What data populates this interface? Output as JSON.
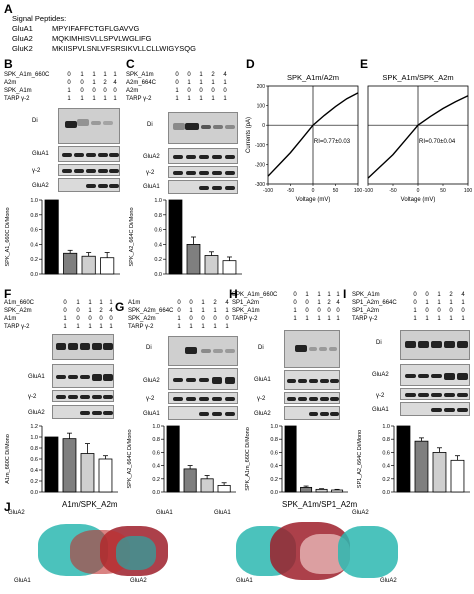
{
  "panels": {
    "A": "A",
    "B": "B",
    "C": "C",
    "D": "D",
    "E": "E",
    "F": "F",
    "G": "G",
    "H": "H",
    "I": "I",
    "J": "J"
  },
  "signal": {
    "title": "Signal Peptides:",
    "rows": [
      {
        "name": "GluA1",
        "seq": "MPYIFAFFCTGFLGAVVG"
      },
      {
        "name": "GluA2",
        "seq": "MQKIMHISVLLSPVLWGLIFG"
      },
      {
        "name": "GluK2",
        "seq": "MKIISPVLSNLVFSRSIKVLLCLLWIGYSQG"
      }
    ]
  },
  "B": {
    "rows": [
      {
        "label": "SPK_A1m_660C",
        "vals": [
          "0",
          "1",
          "1",
          "1",
          "1"
        ]
      },
      {
        "label": "A2m",
        "vals": [
          "0",
          "0",
          "1",
          "2",
          "4"
        ]
      },
      {
        "label": "SPK_A1m",
        "vals": [
          "1",
          "0",
          "0",
          "0",
          "0"
        ]
      },
      {
        "label": "TARP γ-2",
        "vals": [
          "1",
          "1",
          "1",
          "1",
          "1"
        ]
      }
    ],
    "di": "Di",
    "blot2": "GluA1",
    "blot3": "γ-2",
    "blot4": "GluA2",
    "ylabel": "SPK_A1_660C Di/Mono",
    "ticks": [
      "1.0",
      "0.8",
      "0.6",
      "0.4",
      "0.2",
      "0.0"
    ]
  },
  "C": {
    "rows": [
      {
        "label": "SPK_A1m",
        "vals": [
          "0",
          "0",
          "1",
          "2",
          "4"
        ]
      },
      {
        "label": "A2m_664C",
        "vals": [
          "0",
          "1",
          "1",
          "1",
          "1"
        ]
      },
      {
        "label": "A2m",
        "vals": [
          "1",
          "0",
          "0",
          "0",
          "0"
        ]
      },
      {
        "label": "TARP γ-2",
        "vals": [
          "1",
          "1",
          "1",
          "1",
          "1"
        ]
      }
    ],
    "di": "Di",
    "blot2": "GluA2",
    "blot3": "γ-2",
    "blot4": "GluA1",
    "ylabel": "SPK_A2_664C Di/Mono",
    "ticks": [
      "1.0",
      "0.8",
      "0.6",
      "0.4",
      "0.2",
      "0.0"
    ]
  },
  "D": {
    "title": "SPK_A1m/A2m",
    "ylabel": "Currents (pA)",
    "xlabel": "Voltage (mV)",
    "ri": "RI=0.77±0.03",
    "yticks": [
      "200",
      "100",
      "0",
      "-100",
      "-200",
      "-300"
    ],
    "xticks": [
      "-100",
      "-50",
      "0",
      "50",
      "100"
    ]
  },
  "E": {
    "title": "SPK_A1m/SPK_A2m",
    "xlabel": "Voltage (mV)",
    "ri": "RI=0.70±0.04",
    "xticks": [
      "-100",
      "-50",
      "0",
      "50",
      "100"
    ]
  },
  "F": {
    "rows": [
      {
        "label": "A1m_660C",
        "vals": [
          "0",
          "1",
          "1",
          "1",
          "1"
        ]
      },
      {
        "label": "SPK_A2m",
        "vals": [
          "0",
          "0",
          "1",
          "2",
          "4"
        ]
      },
      {
        "label": "A1m",
        "vals": [
          "1",
          "0",
          "0",
          "0",
          "0"
        ]
      },
      {
        "label": "TARP γ-2",
        "vals": [
          "1",
          "1",
          "1",
          "1",
          "1"
        ]
      }
    ],
    "blot2": "GluA1",
    "blot3": "γ-2",
    "blot4": "GluA2",
    "ylabel": "A1m_660C Di/Mono",
    "ticks": [
      "1.2",
      "1.0",
      "0.8",
      "0.6",
      "0.4",
      "0.2",
      "0.0"
    ]
  },
  "G": {
    "rows": [
      {
        "label": "A1m",
        "vals": [
          "0",
          "0",
          "1",
          "2",
          "4"
        ]
      },
      {
        "label": "SPK_A2m_664C",
        "vals": [
          "0",
          "1",
          "1",
          "1",
          "1"
        ]
      },
      {
        "label": "SPK_A2m",
        "vals": [
          "1",
          "0",
          "0",
          "0",
          "0"
        ]
      },
      {
        "label": "TARP γ-2",
        "vals": [
          "1",
          "1",
          "1",
          "1",
          "1"
        ]
      }
    ],
    "di": "Di",
    "blot2": "GluA2",
    "blot3": "γ-2",
    "blot4": "GluA1",
    "ylabel": "SPK_A2_664C Di/Mono",
    "ticks": [
      "1.0",
      "0.8",
      "0.6",
      "0.4",
      "0.2",
      "0.0"
    ]
  },
  "H": {
    "rows": [
      {
        "label": "SPK_A1m_660C",
        "vals": [
          "0",
          "1",
          "1",
          "1",
          "1"
        ]
      },
      {
        "label": "SP1_A2m",
        "vals": [
          "0",
          "0",
          "1",
          "2",
          "4"
        ]
      },
      {
        "label": "SPK_A1m",
        "vals": [
          "1",
          "0",
          "0",
          "0",
          "0"
        ]
      },
      {
        "label": "TARP γ-2",
        "vals": [
          "1",
          "1",
          "1",
          "1",
          "1"
        ]
      }
    ],
    "di": "Di",
    "blot2": "GluA1",
    "blot3": "γ-2",
    "blot4": "GluA2",
    "ylabel": "SPK_A1m_660C Di/Mono",
    "ticks": [
      "1.0",
      "0.8",
      "0.6",
      "0.4",
      "0.2",
      "0.0"
    ]
  },
  "I": {
    "rows": [
      {
        "label": "SPK_A1m",
        "vals": [
          "0",
          "0",
          "1",
          "2",
          "4"
        ]
      },
      {
        "label": "SP1_A2m_664C",
        "vals": [
          "0",
          "1",
          "1",
          "1",
          "1"
        ]
      },
      {
        "label": "SP1_A2m",
        "vals": [
          "1",
          "0",
          "0",
          "0",
          "0"
        ]
      },
      {
        "label": "TARP γ-2",
        "vals": [
          "1",
          "1",
          "1",
          "1",
          "1"
        ]
      }
    ],
    "di": "Di",
    "blot2": "GluA2",
    "blot3": "γ-2",
    "blot4": "GluA1",
    "ylabel": "SP1_A2_664C Di/Mono",
    "ticks": [
      "1.0",
      "0.8",
      "0.6",
      "0.4",
      "0.2",
      "0.0"
    ]
  },
  "J": {
    "left_title": "A1m/SPK_A2m",
    "right_title": "SPK_A1m/SP1_A2m",
    "labels": [
      "GluA2",
      "GluA1",
      "GluA1",
      "GluA2",
      "GluA1",
      "GluA2",
      "GluA1",
      "GluA2"
    ]
  },
  "chart_data": [
    {
      "type": "bar",
      "panel": "B",
      "categories": [
        "1",
        "2",
        "3",
        "4",
        "5"
      ],
      "values": [
        1.0,
        0.28,
        0.24,
        0.22,
        0.0
      ],
      "errors": [
        0,
        0.04,
        0.05,
        0.07,
        0
      ],
      "ylim": [
        0,
        1.0
      ]
    },
    {
      "type": "bar",
      "panel": "C",
      "categories": [
        "1",
        "2",
        "3",
        "4",
        "5"
      ],
      "values": [
        1.0,
        0.4,
        0.25,
        0.18,
        0.0
      ],
      "errors": [
        0,
        0.1,
        0.05,
        0.05,
        0
      ],
      "ylim": [
        0,
        1.0
      ]
    },
    {
      "type": "line",
      "panel": "D",
      "xlabel": "Voltage (mV)",
      "ylabel": "Currents (pA)",
      "x": [
        -100,
        -75,
        -50,
        -25,
        0,
        25,
        50,
        75,
        100
      ],
      "y": [
        -260,
        -200,
        -140,
        -70,
        0,
        50,
        95,
        135,
        165
      ],
      "xlim": [
        -100,
        100
      ],
      "ylim": [
        -300,
        200
      ]
    },
    {
      "type": "line",
      "panel": "E",
      "xlabel": "Voltage (mV)",
      "x": [
        -100,
        -75,
        -50,
        -25,
        0,
        25,
        50,
        75,
        100
      ],
      "y": [
        -270,
        -210,
        -150,
        -75,
        0,
        45,
        85,
        120,
        150
      ],
      "xlim": [
        -100,
        100
      ],
      "ylim": [
        -300,
        200
      ]
    },
    {
      "type": "bar",
      "panel": "F",
      "categories": [
        "1",
        "2",
        "3",
        "4",
        "5"
      ],
      "values": [
        1.0,
        0.97,
        0.7,
        0.6,
        0.0
      ],
      "errors": [
        0,
        0.1,
        0.18,
        0.06,
        0
      ],
      "ylim": [
        0,
        1.2
      ]
    },
    {
      "type": "bar",
      "panel": "G",
      "categories": [
        "1",
        "2",
        "3",
        "4",
        "5"
      ],
      "values": [
        1.0,
        0.35,
        0.2,
        0.1,
        0.0
      ],
      "errors": [
        0,
        0.05,
        0.05,
        0.04,
        0
      ],
      "ylim": [
        0,
        1.0
      ]
    },
    {
      "type": "bar",
      "panel": "H",
      "categories": [
        "1",
        "2",
        "3",
        "4",
        "5"
      ],
      "values": [
        1.0,
        0.07,
        0.04,
        0.03,
        0.0
      ],
      "errors": [
        0,
        0.02,
        0.01,
        0.01,
        0
      ],
      "ylim": [
        0,
        1.0
      ]
    },
    {
      "type": "bar",
      "panel": "I",
      "categories": [
        "1",
        "2",
        "3",
        "4",
        "5"
      ],
      "values": [
        1.0,
        0.77,
        0.6,
        0.48,
        0.0
      ],
      "errors": [
        0,
        0.05,
        0.07,
        0.07,
        0
      ],
      "ylim": [
        0,
        1.0
      ]
    }
  ]
}
